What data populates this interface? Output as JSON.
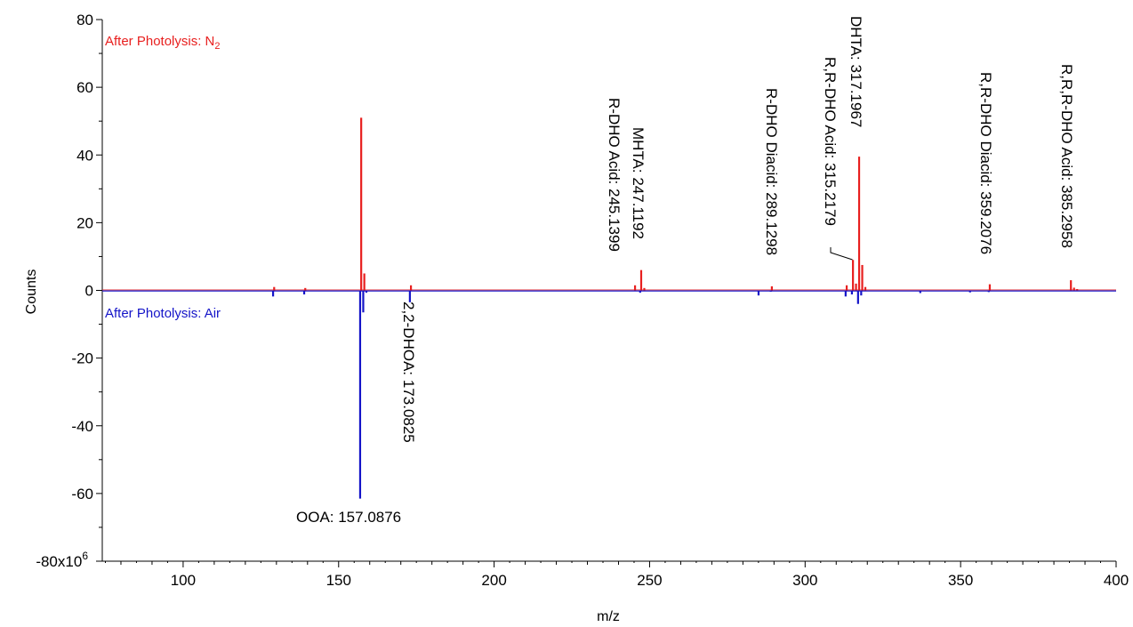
{
  "chart_data": {
    "type": "bar",
    "xlabel": "m/z",
    "ylabel": "Counts",
    "xlim": [
      74,
      400
    ],
    "ylim": [
      -80000000,
      80000000
    ],
    "x_ticks": [
      100,
      150,
      200,
      250,
      300,
      350,
      400
    ],
    "x_tick_labels": [
      "100",
      "150",
      "200",
      "250",
      "300",
      "350",
      "400"
    ],
    "y_ticks": [
      80000000,
      60000000,
      40000000,
      20000000,
      0,
      -20000000,
      -40000000,
      -60000000,
      -80000000
    ],
    "y_tick_labels": [
      "80",
      "60",
      "40",
      "20",
      "0",
      "-20",
      "-40",
      "-60",
      "-80"
    ],
    "y_scale_suffix": "x10",
    "y_scale_exponent": "6",
    "grid": false,
    "series": [
      {
        "name_text": "After Photolysis: N",
        "name_subscript": "2",
        "color": "#e8201f",
        "direction": "up",
        "points": [
          {
            "x": 129.1,
            "y": 1000000
          },
          {
            "x": 139.1,
            "y": 700000
          },
          {
            "x": 157.0876,
            "y": 51000000
          },
          {
            "x": 158.09,
            "y": 5000000
          },
          {
            "x": 173.0825,
            "y": 1500000
          },
          {
            "x": 245.1399,
            "y": 1500000
          },
          {
            "x": 247.1192,
            "y": 6000000
          },
          {
            "x": 248.12,
            "y": 700000
          },
          {
            "x": 289.1298,
            "y": 1200000
          },
          {
            "x": 313.2,
            "y": 1500000
          },
          {
            "x": 315.2179,
            "y": 9000000
          },
          {
            "x": 316.2,
            "y": 2000000
          },
          {
            "x": 317.1967,
            "y": 39500000
          },
          {
            "x": 318.2,
            "y": 7500000
          },
          {
            "x": 319.2,
            "y": 1000000
          },
          {
            "x": 359.2076,
            "y": 1800000
          },
          {
            "x": 385.2958,
            "y": 3000000
          },
          {
            "x": 386.3,
            "y": 800000
          },
          {
            "x": 387.3,
            "y": 400000
          }
        ]
      },
      {
        "name_text": "After Photolysis: Air",
        "color": "#1414c8",
        "direction": "down",
        "points": [
          {
            "x": 129.1,
            "y": -1800000
          },
          {
            "x": 139.1,
            "y": -1200000
          },
          {
            "x": 157.0876,
            "y": -61500000
          },
          {
            "x": 158.09,
            "y": -6500000
          },
          {
            "x": 159.1,
            "y": -700000
          },
          {
            "x": 173.0825,
            "y": -3500000
          },
          {
            "x": 247.1192,
            "y": -700000
          },
          {
            "x": 285.2,
            "y": -1500000
          },
          {
            "x": 289.1298,
            "y": -400000
          },
          {
            "x": 313.2,
            "y": -1800000
          },
          {
            "x": 315.2179,
            "y": -1200000
          },
          {
            "x": 317.1967,
            "y": -4000000
          },
          {
            "x": 318.2,
            "y": -1500000
          },
          {
            "x": 337.2,
            "y": -800000
          },
          {
            "x": 353.2,
            "y": -600000
          },
          {
            "x": 359.2076,
            "y": -500000
          }
        ]
      }
    ],
    "annotations": [
      {
        "text": "OOA: 157.0876",
        "x": 157.0876,
        "orientation": "horizontal"
      },
      {
        "text": "2,2-DHOA: 173.0825",
        "x": 173.0825,
        "orientation": "vertical-down"
      },
      {
        "text": "R-DHO Acid: 245.1399",
        "x": 245.1399,
        "orientation": "vertical-up"
      },
      {
        "text": "MHTA: 247.1192",
        "x": 247.1192,
        "orientation": "vertical-up"
      },
      {
        "text": "R-DHO Diacid: 289.1298",
        "x": 289.1298,
        "orientation": "vertical-up"
      },
      {
        "text": "R,R-DHO Acid: 315.2179",
        "x": 315.2179,
        "orientation": "vertical-up"
      },
      {
        "text": "DHTA: 317.1967",
        "x": 317.1967,
        "orientation": "vertical-up"
      },
      {
        "text": "R,R-DHO Diacid: 359.2076",
        "x": 359.2076,
        "orientation": "vertical-up"
      },
      {
        "text": "R,R,R-DHO Acid: 385.2958",
        "x": 385.2958,
        "orientation": "vertical-up"
      }
    ]
  }
}
